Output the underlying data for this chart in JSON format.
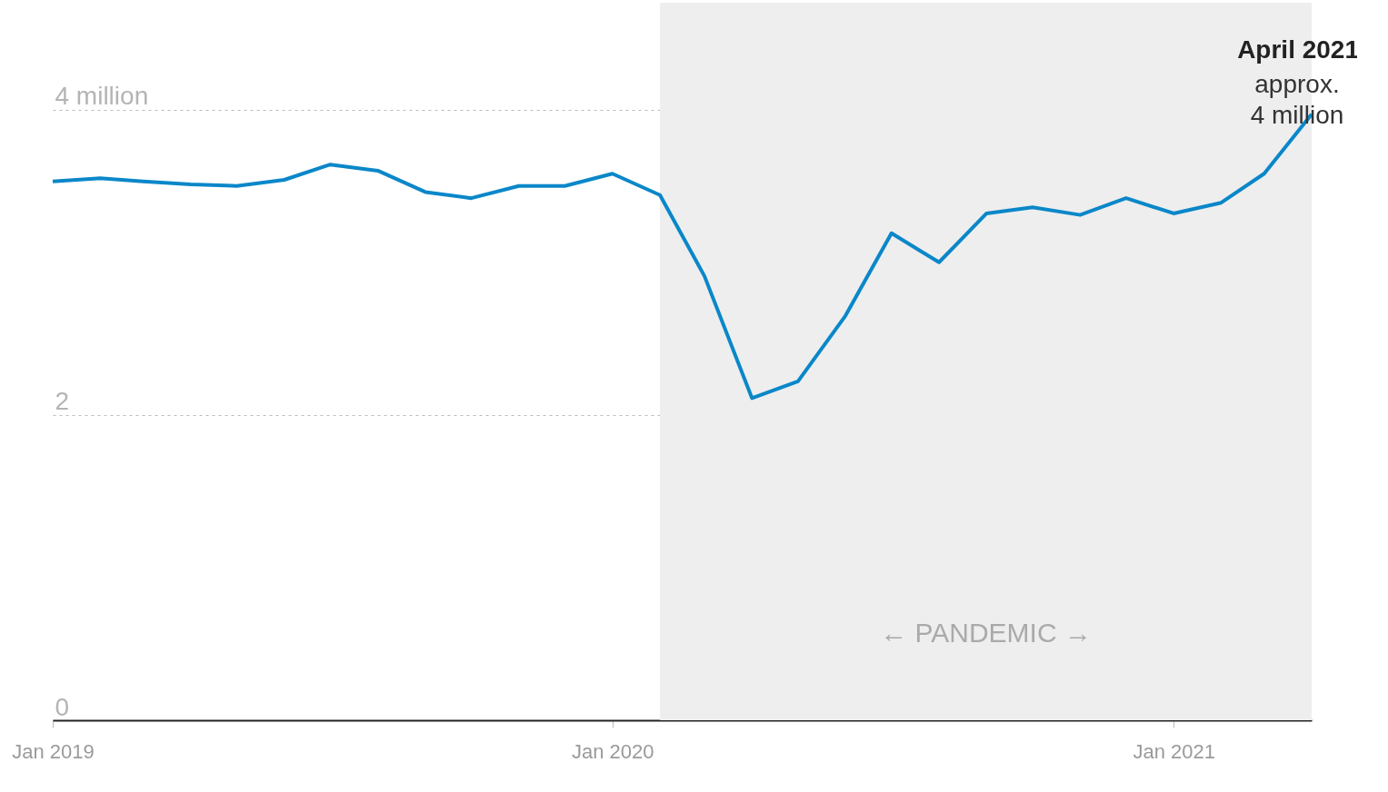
{
  "chart_data": {
    "type": "line",
    "x": [
      "2019-01",
      "2019-02",
      "2019-03",
      "2019-04",
      "2019-05",
      "2019-06",
      "2019-07",
      "2019-08",
      "2019-09",
      "2019-10",
      "2019-11",
      "2019-12",
      "2020-01",
      "2020-02",
      "2020-03",
      "2020-04",
      "2020-05",
      "2020-06",
      "2020-07",
      "2020-08",
      "2020-09",
      "2020-10",
      "2020-11",
      "2020-12",
      "2021-01",
      "2021-02",
      "2021-03",
      "2021-04"
    ],
    "series": [
      {
        "color": "#0a87c9",
        "values": [
          3.53,
          3.55,
          3.53,
          3.51,
          3.5,
          3.54,
          3.64,
          3.6,
          3.46,
          3.42,
          3.5,
          3.5,
          3.58,
          3.44,
          2.91,
          2.11,
          2.22,
          2.65,
          3.19,
          3.0,
          3.32,
          3.36,
          3.31,
          3.42,
          3.32,
          3.39,
          3.58,
          3.97
        ]
      }
    ],
    "xlim": [
      "2019-01",
      "2021-04"
    ],
    "xticks": [
      {
        "value": "2019-01",
        "label": "Jan 2019"
      },
      {
        "value": "2020-01",
        "label": "Jan 2020"
      },
      {
        "value": "2021-01",
        "label": "Jan 2021"
      }
    ],
    "ylim": [
      0,
      4.7
    ],
    "yticks": [
      0,
      2,
      {
        "value": 4,
        "label": "4 million"
      }
    ],
    "grid": "y",
    "bands": [
      {
        "axis": "x",
        "from": "2020-02",
        "to": "2021-04",
        "label": "← PANDEMIC →",
        "color": "#eeeeee"
      }
    ],
    "annotations": [
      {
        "text": "April 2021",
        "x": "2021-04",
        "y": 3.97
      },
      "approx.\n4 million"
    ]
  }
}
